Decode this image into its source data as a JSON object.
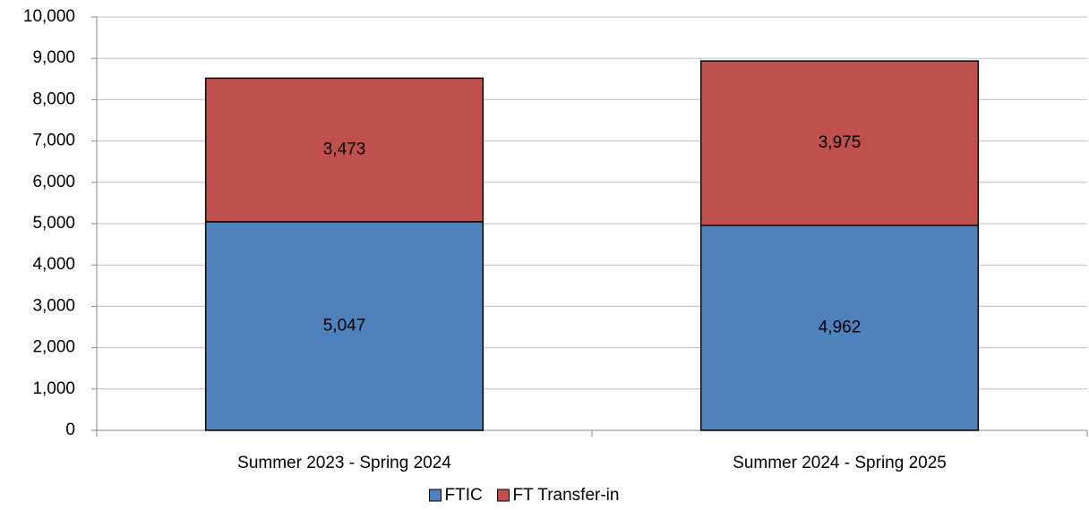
{
  "chart_data": {
    "type": "stacked_bar",
    "categories": [
      "Summer 2023 - Spring 2024",
      "Summer 2024 - Spring 2025"
    ],
    "series": [
      {
        "name": "FTIC",
        "color": "#4f81bd",
        "values": [
          5047,
          4962
        ],
        "value_labels": [
          "5,047",
          "4,962"
        ]
      },
      {
        "name": "FT Transfer-in",
        "color": "#c0504d",
        "values": [
          3473,
          3975
        ],
        "value_labels": [
          "3,473",
          "3,975"
        ]
      }
    ],
    "ylim": [
      0,
      10000
    ],
    "yticks": [
      0,
      {
        "value": 1000,
        "label": "1,000"
      },
      {
        "value": 2000,
        "label": "2,000"
      },
      {
        "value": 3000,
        "label": "3,000"
      },
      {
        "value": 4000,
        "label": "4,000"
      },
      {
        "value": 5000,
        "label": "5,000"
      },
      {
        "value": 6000,
        "label": "6,000"
      },
      {
        "value": 7000,
        "label": "7,000"
      },
      {
        "value": 8000,
        "label": "8,000"
      },
      {
        "value": 9000,
        "label": "9,000"
      },
      {
        "value": 10000,
        "label": "10,000"
      }
    ],
    "grid": true,
    "legend": "bottom"
  }
}
